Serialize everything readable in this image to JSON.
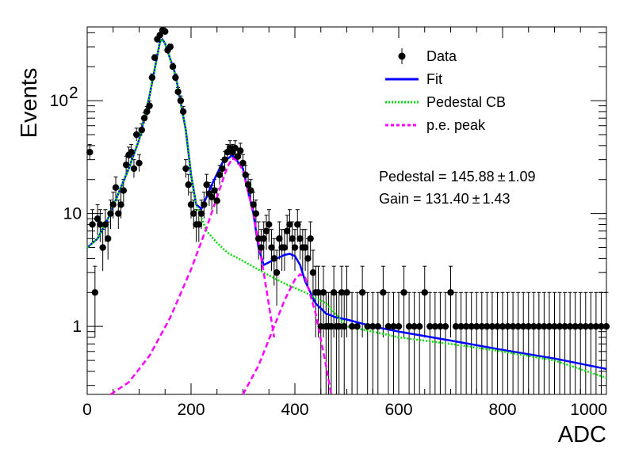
{
  "chart_data": {
    "type": "scatter",
    "xlabel": "ADC",
    "ylabel": "Events",
    "xlim": [
      0,
      1000
    ],
    "ylim": [
      0.25,
      450
    ],
    "yscale": "log",
    "x_ticks": [
      "0",
      "200",
      "400",
      "600",
      "800",
      "1000"
    ],
    "y_ticks": [
      "1",
      "10",
      "10^2"
    ],
    "legend": [
      {
        "name": "Data",
        "style": "marker",
        "color": "#000000"
      },
      {
        "name": "Fit",
        "style": "solid",
        "color": "#0000ff"
      },
      {
        "name": "Pedestal CB",
        "style": "dotted",
        "color": "#00dd00"
      },
      {
        "name": "p.e. peak",
        "style": "dashed",
        "color": "#ff00ff"
      }
    ],
    "legend_position": "top-right",
    "annotations": {
      "pedestal_label": "Pedestal = 145.88",
      "pedestal_err": "1.09",
      "gain_label": "Gain = 131.40",
      "gain_err": "1.43",
      "pm_symbol": "±"
    },
    "data_points": {
      "x": [
        5,
        10,
        15,
        20,
        25,
        30,
        35,
        40,
        45,
        50,
        55,
        60,
        65,
        70,
        75,
        80,
        85,
        90,
        95,
        100,
        105,
        110,
        115,
        120,
        125,
        130,
        135,
        140,
        145,
        150,
        155,
        160,
        165,
        170,
        175,
        180,
        185,
        190,
        195,
        200,
        205,
        210,
        215,
        220,
        225,
        230,
        235,
        240,
        245,
        250,
        255,
        260,
        265,
        270,
        275,
        280,
        285,
        290,
        295,
        300,
        305,
        310,
        315,
        320,
        325,
        330,
        335,
        340,
        345,
        350,
        355,
        360,
        365,
        370,
        375,
        380,
        385,
        390,
        395,
        400,
        405,
        410,
        415,
        420,
        425,
        430,
        435,
        440,
        445,
        450,
        455,
        460,
        465,
        470,
        475,
        480,
        485,
        490,
        495,
        500,
        510,
        520,
        530,
        540,
        550,
        560,
        570,
        580,
        590,
        600,
        610,
        620,
        630,
        640,
        650,
        660,
        670,
        680,
        690,
        700,
        710,
        720,
        730,
        740,
        750,
        760,
        770,
        780,
        790,
        800,
        810,
        820,
        830,
        840,
        850,
        860,
        870,
        880,
        890,
        900,
        910,
        920,
        930,
        940,
        950,
        960,
        970,
        980,
        990,
        1000
      ],
      "y": [
        35,
        8,
        2,
        9,
        8,
        5,
        8,
        6,
        10,
        12,
        17,
        10,
        12,
        16,
        27,
        33,
        35,
        25,
        50,
        28,
        55,
        70,
        80,
        90,
        160,
        240,
        350,
        380,
        420,
        410,
        280,
        300,
        200,
        160,
        120,
        100,
        80,
        25,
        18,
        12,
        10,
        8,
        8,
        10,
        12,
        18,
        15,
        14,
        16,
        13,
        22,
        25,
        30,
        35,
        38,
        35,
        38,
        32,
        36,
        28,
        22,
        18,
        16,
        12,
        10,
        6,
        5,
        6,
        7,
        8,
        5,
        4,
        3,
        6,
        5,
        5,
        7,
        8,
        6,
        5,
        8,
        6,
        5,
        5,
        4,
        6,
        3,
        2,
        2,
        1,
        2,
        1,
        1,
        1,
        2,
        1,
        1,
        2,
        1,
        2,
        1,
        1,
        2,
        1,
        1,
        1,
        2,
        1,
        1,
        1,
        2,
        1,
        1,
        1,
        2,
        1,
        1,
        1,
        1,
        2,
        1,
        1,
        1,
        1,
        1,
        1,
        1,
        1,
        1,
        1,
        1,
        1,
        1,
        1,
        1,
        1,
        1,
        1,
        1,
        1,
        1,
        1,
        1,
        1,
        1,
        1,
        1,
        1,
        1,
        1
      ],
      "y_err": "sqrt(y)"
    },
    "series": [
      {
        "name": "Fit",
        "x": [
          0,
          20,
          40,
          60,
          80,
          100,
          120,
          140,
          145,
          150,
          170,
          190,
          200,
          210,
          220,
          230,
          240,
          260,
          280,
          300,
          320,
          330,
          340,
          360,
          380,
          390,
          400,
          410,
          420,
          440,
          460,
          480,
          500,
          550,
          600,
          700,
          800,
          900,
          1000
        ],
        "y": [
          5,
          6,
          9,
          15,
          25,
          45,
          110,
          330,
          350,
          320,
          170,
          55,
          22,
          12,
          11,
          14,
          18,
          28,
          33,
          25,
          10,
          5,
          3.5,
          3.9,
          4.3,
          4.4,
          4.2,
          3.5,
          2.5,
          1.6,
          1.3,
          1.2,
          1.15,
          1.0,
          0.9,
          0.75,
          0.62,
          0.52,
          0.42
        ]
      },
      {
        "name": "Pedestal CB",
        "x": [
          0,
          20,
          40,
          60,
          80,
          100,
          120,
          140,
          145,
          150,
          170,
          190,
          200,
          210,
          230,
          250,
          270,
          300,
          340,
          380,
          420,
          460,
          500,
          550,
          600,
          700,
          800,
          900,
          1000
        ],
        "y": [
          5,
          6,
          9,
          15,
          25,
          45,
          110,
          330,
          350,
          320,
          170,
          55,
          22,
          12,
          7,
          5.5,
          4.5,
          3.8,
          3.0,
          2.4,
          2.0,
          1.6,
          1.0,
          0.9,
          0.8,
          0.7,
          0.6,
          0.5,
          0.35
        ]
      },
      {
        "name": "p.e. peak",
        "x": [
          45,
          80,
          120,
          160,
          200,
          230,
          250,
          270,
          280,
          290,
          300,
          320,
          340,
          360
        ],
        "y": [
          0.25,
          0.32,
          0.55,
          1.2,
          3.2,
          7.5,
          14,
          26,
          31,
          29,
          24,
          10,
          3,
          0.8
        ]
      },
      {
        "name": "p.e. peak",
        "x": [
          300,
          330,
          360,
          380,
          400,
          410,
          420,
          440,
          460,
          470
        ],
        "y": [
          0.25,
          0.45,
          1.0,
          1.7,
          2.6,
          2.9,
          2.7,
          1.3,
          0.45,
          0.25
        ]
      }
    ]
  }
}
